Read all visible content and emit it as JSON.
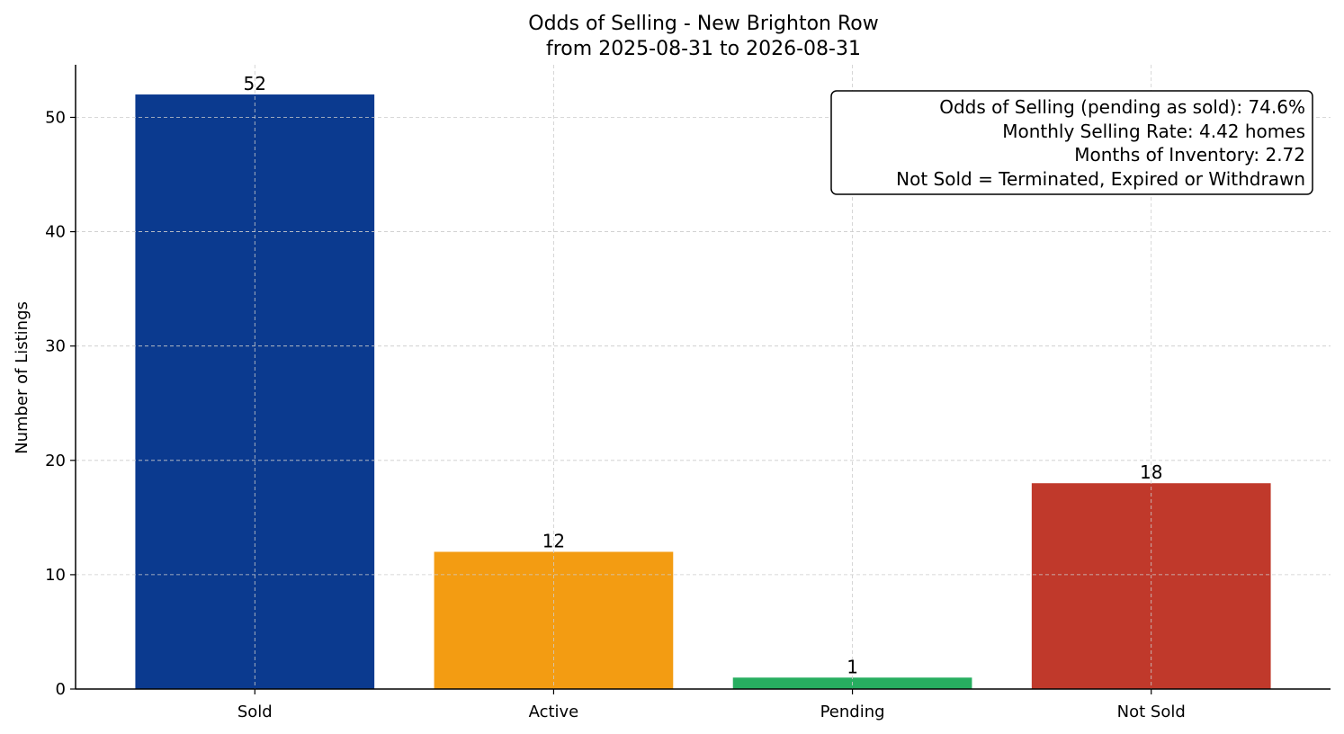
{
  "chart_data": {
    "type": "bar",
    "title": "Odds of Selling - New Brighton Row",
    "subtitle": "from 2025-08-31 to 2026-08-31",
    "xlabel": "",
    "ylabel": "Number of Listings",
    "categories": [
      "Sold",
      "Active",
      "Pending",
      "Not Sold"
    ],
    "values": [
      52,
      12,
      1,
      18
    ],
    "colors": [
      "#0b3a8f",
      "#f39c12",
      "#27ae60",
      "#c0392b"
    ],
    "ylim": [
      0,
      54.6
    ],
    "yticks": [
      0,
      10,
      20,
      30,
      40,
      50
    ],
    "grid": true,
    "annotation_placement": "top-right",
    "annotation_lines": [
      "Odds of Selling (pending as sold): 74.6%",
      "Monthly Selling Rate: 4.42 homes",
      "Months of Inventory: 2.72",
      "Not Sold = Terminated, Expired or Withdrawn"
    ]
  }
}
